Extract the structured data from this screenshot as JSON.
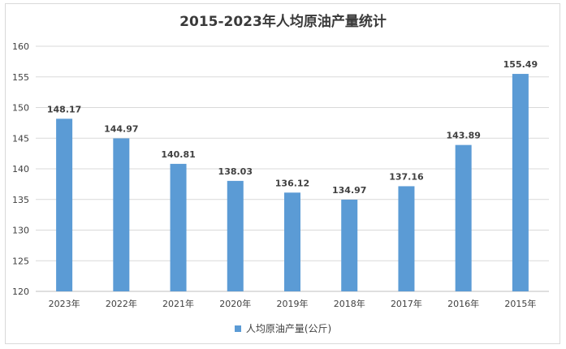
{
  "chart_data": {
    "type": "bar",
    "title": "2015-2023年人均原油产量统计",
    "categories": [
      "2023年",
      "2022年",
      "2021年",
      "2020年",
      "2019年",
      "2018年",
      "2017年",
      "2016年",
      "2015年"
    ],
    "series": [
      {
        "name": "人均原油产量(公斤)",
        "values": [
          148.17,
          144.97,
          140.81,
          138.03,
          136.12,
          134.97,
          137.16,
          143.89,
          155.49
        ],
        "value_labels": [
          "148.17",
          "144.97",
          "140.81",
          "138.03",
          "136.12",
          "134.97",
          "137.16",
          "143.89",
          "155.49"
        ]
      }
    ],
    "ylim": [
      120,
      160
    ],
    "yticks": [
      "120",
      "125",
      "130",
      "135",
      "140",
      "145",
      "150",
      "155",
      "160"
    ],
    "grid": true,
    "legend_position": "bottom",
    "bar_color": "#5b9bd5"
  }
}
